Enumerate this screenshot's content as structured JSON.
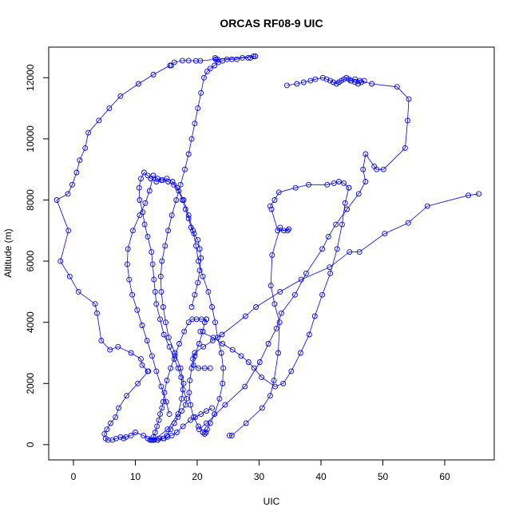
{
  "chart_data": {
    "type": "line",
    "title": "ORCAS RF08-9 UIC",
    "xlabel": "UIC",
    "ylabel": "Altitude (m)",
    "xlim": [
      -4,
      68
    ],
    "ylim": [
      -500,
      13000
    ],
    "x_ticks": [
      0,
      10,
      20,
      30,
      40,
      50,
      60
    ],
    "y_ticks": [
      0,
      2000,
      4000,
      6000,
      8000,
      10000,
      12000
    ],
    "grid": false,
    "legend": "none",
    "markers": "open circles connected by lines",
    "series_color": "#0000ff",
    "series": [
      {
        "x": [
          65.5,
          63.8,
          57.2,
          54.1,
          50.3,
          46.2,
          44.6,
          41.4,
          36.8,
          33.4,
          29.5,
          27.8,
          24.0,
          22.5,
          21.0,
          19.6,
          19.3,
          19.4,
          20.2,
          21.2,
          22.1
        ],
        "y": [
          8200,
          8150,
          7800,
          7250,
          6900,
          6300,
          6300,
          5800,
          5400,
          5000,
          4500,
          4200,
          3600,
          3400,
          3200,
          3000,
          2800,
          2600,
          2500,
          2500,
          2500
        ]
      },
      {
        "x": [
          25.2,
          25.6,
          27.9,
          30.5,
          31.8,
          32.4,
          33.1,
          33.3,
          32.5,
          31.9,
          32.1,
          33.4,
          34.0,
          34.8,
          34.6,
          33.0,
          32.0
        ],
        "y": [
          300,
          300,
          700,
          1200,
          1600,
          2100,
          3000,
          4000,
          4600,
          5200,
          6200,
          7100,
          7000,
          7050,
          7000,
          7000,
          7700
        ]
      },
      {
        "x": [
          20.3,
          21.5,
          24.5,
          27.7,
          30.1,
          31.5,
          32.8,
          33.6,
          35.8,
          37.6,
          40.2,
          41.2,
          42.4,
          44.2,
          46.1,
          47.2,
          46.8,
          47.2,
          48.6,
          49.0,
          50.1,
          53.6,
          54.0,
          54.2,
          52.3,
          48.2,
          46.3,
          45.5,
          44.8
        ],
        "y": [
          500,
          700,
          1300,
          1900,
          2700,
          3300,
          3800,
          4300,
          4900,
          5600,
          6400,
          6800,
          7200,
          7700,
          8200,
          8600,
          9000,
          9500,
          9100,
          9000,
          9000,
          9700,
          10600,
          11300,
          11700,
          11800,
          11900,
          11950,
          11900
        ]
      },
      {
        "x": [
          34.5,
          36.1,
          37.2,
          38.3,
          39.1,
          40.3,
          40.9,
          41.5,
          42.0,
          42.5,
          42.9,
          43.3,
          43.7,
          44.1,
          44.5,
          44.9,
          45.5,
          46.0,
          46.5,
          47.0
        ],
        "y": [
          11750,
          11800,
          11850,
          11900,
          11950,
          12000,
          11950,
          11900,
          11850,
          11800,
          11850,
          11900,
          11950,
          12000,
          11950,
          11900,
          11850,
          11800,
          11850,
          11900
        ]
      },
      {
        "x": [
          13.0,
          15.2,
          16.9,
          17.5,
          17.8,
          17.3,
          16.4,
          15.4,
          14.9,
          14.5,
          14.2,
          14.1,
          14.3,
          14.8,
          15.3,
          15.9,
          16.6,
          17.3,
          18.0,
          18.6,
          19.1,
          19.6,
          20.1,
          20.6,
          21.1,
          21.6,
          22.1,
          22.8,
          23.4,
          24.1,
          24.8,
          25.6,
          26.4,
          27.3,
          28.2
        ],
        "y": [
          150,
          500,
          1000,
          1500,
          2000,
          2500,
          3000,
          3500,
          4000,
          4500,
          5000,
          5500,
          6000,
          6500,
          7000,
          7500,
          8000,
          8500,
          9000,
          9500,
          10000,
          10500,
          11000,
          11500,
          12000,
          12200,
          12300,
          12400,
          12500,
          12550,
          12600,
          12600,
          12600,
          12650,
          12650
        ]
      },
      {
        "x": [
          28.6,
          29.1,
          29.4,
          23.3,
          23.0,
          22.9,
          23.0,
          20.5,
          19.8,
          18.6,
          17.6,
          16.3,
          15.8
        ],
        "y": [
          12650,
          12700,
          12700,
          12600,
          12600,
          12650,
          12600,
          12550,
          12550,
          12560,
          12560,
          12500,
          12400
        ]
      },
      {
        "x": [
          15.6,
          12.9,
          10.5,
          7.6,
          5.8,
          4.1,
          2.4,
          1.9,
          1.0,
          0.5,
          -0.2,
          -0.9,
          -2.7,
          -0.8,
          -2.1,
          -0.6,
          0.8,
          3.5,
          3.8,
          4.5,
          5.9,
          7.2,
          9.3,
          10.9,
          11.1,
          12.0
        ],
        "y": [
          12400,
          12100,
          11800,
          11400,
          11000,
          10600,
          10200,
          9700,
          9300,
          8900,
          8500,
          8200,
          8000,
          7000,
          6000,
          5500,
          5000,
          4600,
          4300,
          3400,
          3100,
          3200,
          3000,
          2800,
          2600,
          2400
        ]
      },
      {
        "x": [
          12.1,
          10.4,
          8.6,
          7.3,
          6.8,
          6.0,
          5.4,
          5.0,
          5.2,
          5.6,
          6.3,
          6.9,
          7.6,
          8.1,
          8.5,
          9.3,
          10.0,
          11.3,
          12.0,
          12.8,
          13.6
        ],
        "y": [
          2400,
          2000,
          1600,
          1200,
          900,
          700,
          500,
          350,
          200,
          150,
          150,
          200,
          250,
          200,
          250,
          300,
          400,
          300,
          200,
          150,
          150
        ]
      },
      {
        "x": [
          13.6,
          14.5,
          15.1,
          15.7,
          16.3,
          16.9,
          17.5,
          18.1,
          18.3,
          17.7,
          17.4,
          16.9,
          16.3,
          15.5,
          14.6,
          14.0,
          13.4,
          13.2,
          13.0,
          12.8,
          12.6,
          12.0,
          11.5,
          11.2,
          10.7,
          10.6,
          10.9,
          11.4,
          12.0,
          12.5
        ],
        "y": [
          150,
          200,
          300,
          500,
          700,
          900,
          1100,
          1300,
          1500,
          1800,
          2200,
          2500,
          2800,
          3200,
          3600,
          4100,
          4600,
          5000,
          5400,
          5900,
          6300,
          6800,
          7200,
          7600,
          8000,
          8400,
          8700,
          8900,
          8800,
          8700
        ]
      },
      {
        "x": [
          12.5,
          13.4,
          14.2,
          15.1,
          16.0,
          16.8,
          17.8,
          18.6,
          19.3,
          19.8,
          20.2,
          20.9,
          21.8,
          22.4,
          22.9,
          23.3,
          23.9,
          24.2,
          24.1,
          23.6,
          22.8
        ],
        "y": [
          8700,
          8600,
          8650,
          8700,
          8600,
          8400,
          8000,
          7500,
          7000,
          6500,
          6000,
          5500,
          5000,
          4500,
          4000,
          3500,
          3000,
          2500,
          2000,
          1500,
          1000
        ]
      },
      {
        "x": [
          22.8,
          22.1,
          21.6,
          21.4,
          21.2,
          20.9,
          20.2,
          19.4,
          18.9,
          18.7,
          18.8,
          19.1,
          19.6,
          20.3,
          20.9,
          21.2,
          21.5
        ],
        "y": [
          1000,
          700,
          500,
          400,
          350,
          400,
          600,
          900,
          1300,
          1700,
          2100,
          2500,
          2900,
          3300,
          3700,
          4000,
          4100
        ]
      },
      {
        "x": [
          21.5,
          20.7,
          19.9,
          19.2,
          18.6,
          17.9,
          17.1,
          16.4,
          15.7,
          15.1,
          14.7,
          14.5,
          14.3,
          14.0,
          13.8,
          13.5,
          13.2,
          12.9,
          12.6,
          12.4
        ],
        "y": [
          4100,
          4100,
          4100,
          4100,
          4000,
          3700,
          3300,
          2900,
          2500,
          2100,
          1700,
          1400,
          1200,
          1000,
          800,
          600,
          400,
          250,
          150,
          150
        ]
      },
      {
        "x": [
          12.4,
          13.0,
          13.8,
          14.6,
          15.2,
          15.9,
          16.7,
          17.7,
          18.9,
          19.7,
          20.6,
          21.5,
          22.4
        ],
        "y": [
          150,
          150,
          200,
          200,
          250,
          300,
          400,
          600,
          800,
          900,
          1000,
          1100,
          1200
        ]
      },
      {
        "x": [
          15.5,
          15.0,
          14.2,
          13.4,
          12.7,
          11.9,
          11.1,
          10.3,
          9.5,
          9.0,
          8.7,
          8.8,
          9.6,
          10.7,
          11.6,
          12.3,
          12.9
        ],
        "y": [
          1000,
          1400,
          1900,
          2400,
          2900,
          3400,
          3900,
          4400,
          4900,
          5400,
          5900,
          6400,
          7000,
          7500,
          7900,
          8300,
          8800
        ]
      },
      {
        "x": [
          12.9,
          13.6,
          14.4,
          15.3,
          16.2,
          17.0,
          17.6,
          18.1,
          18.6,
          19.0,
          19.5,
          20.1,
          20.4,
          20.6,
          20.4,
          20.1,
          19.6,
          19.1
        ],
        "y": [
          8800,
          8700,
          8650,
          8600,
          8500,
          8300,
          8000,
          7700,
          7400,
          7100,
          6900,
          6700,
          6400,
          6100,
          5700,
          5300,
          4900,
          4500
        ]
      },
      {
        "x": [
          20.5,
          22.6,
          24.1,
          25.7,
          27.1,
          28.3,
          29.2,
          30.4,
          32.6,
          33.9,
          35.2,
          36.7,
          38.1,
          39.0,
          40.2,
          41.5,
          42.6,
          43.4,
          43.9,
          44.5
        ],
        "y": [
          3700,
          3500,
          3300,
          3100,
          2900,
          2700,
          2500,
          2200,
          1900,
          2000,
          2400,
          3000,
          3600,
          4200,
          4900,
          5600,
          6400,
          7200,
          7900,
          8400
        ]
      },
      {
        "x": [
          44.5,
          43.7,
          42.9,
          42.1,
          41.0,
          38.0,
          35.9,
          33.2,
          32.5,
          31.8
        ],
        "y": [
          8400,
          8550,
          8600,
          8550,
          8500,
          8500,
          8400,
          8250,
          8000,
          7800
        ]
      }
    ]
  }
}
